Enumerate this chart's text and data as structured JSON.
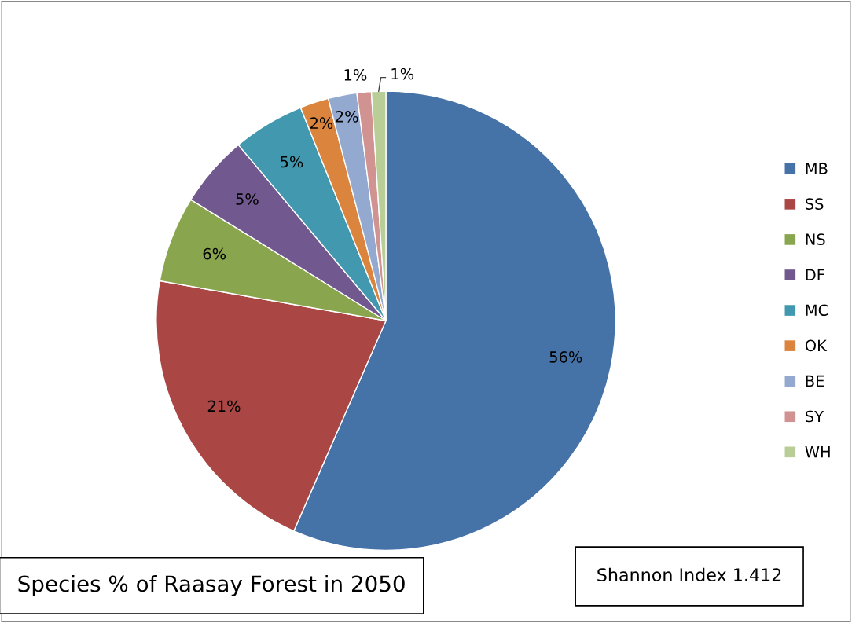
{
  "chart_data": {
    "type": "pie",
    "title": "Species % of Raasay Forest in 2050",
    "categories": [
      "MB",
      "SS",
      "NS",
      "DF",
      "MC",
      "OK",
      "BE",
      "SY",
      "WH"
    ],
    "values": [
      56,
      21,
      6,
      5,
      5,
      2,
      2,
      1,
      1
    ],
    "colors": [
      "#4572a7",
      "#aa4643",
      "#89a54e",
      "#71588f",
      "#4198af",
      "#db843d",
      "#93a9cf",
      "#d19392",
      "#b9cd96"
    ],
    "value_labels": [
      "56%",
      "21%",
      "6%",
      "5%",
      "5%",
      "2%",
      "2%",
      "1%",
      "1%"
    ],
    "legend": "right",
    "annotations": [
      "Shannon Index 1.412"
    ]
  }
}
